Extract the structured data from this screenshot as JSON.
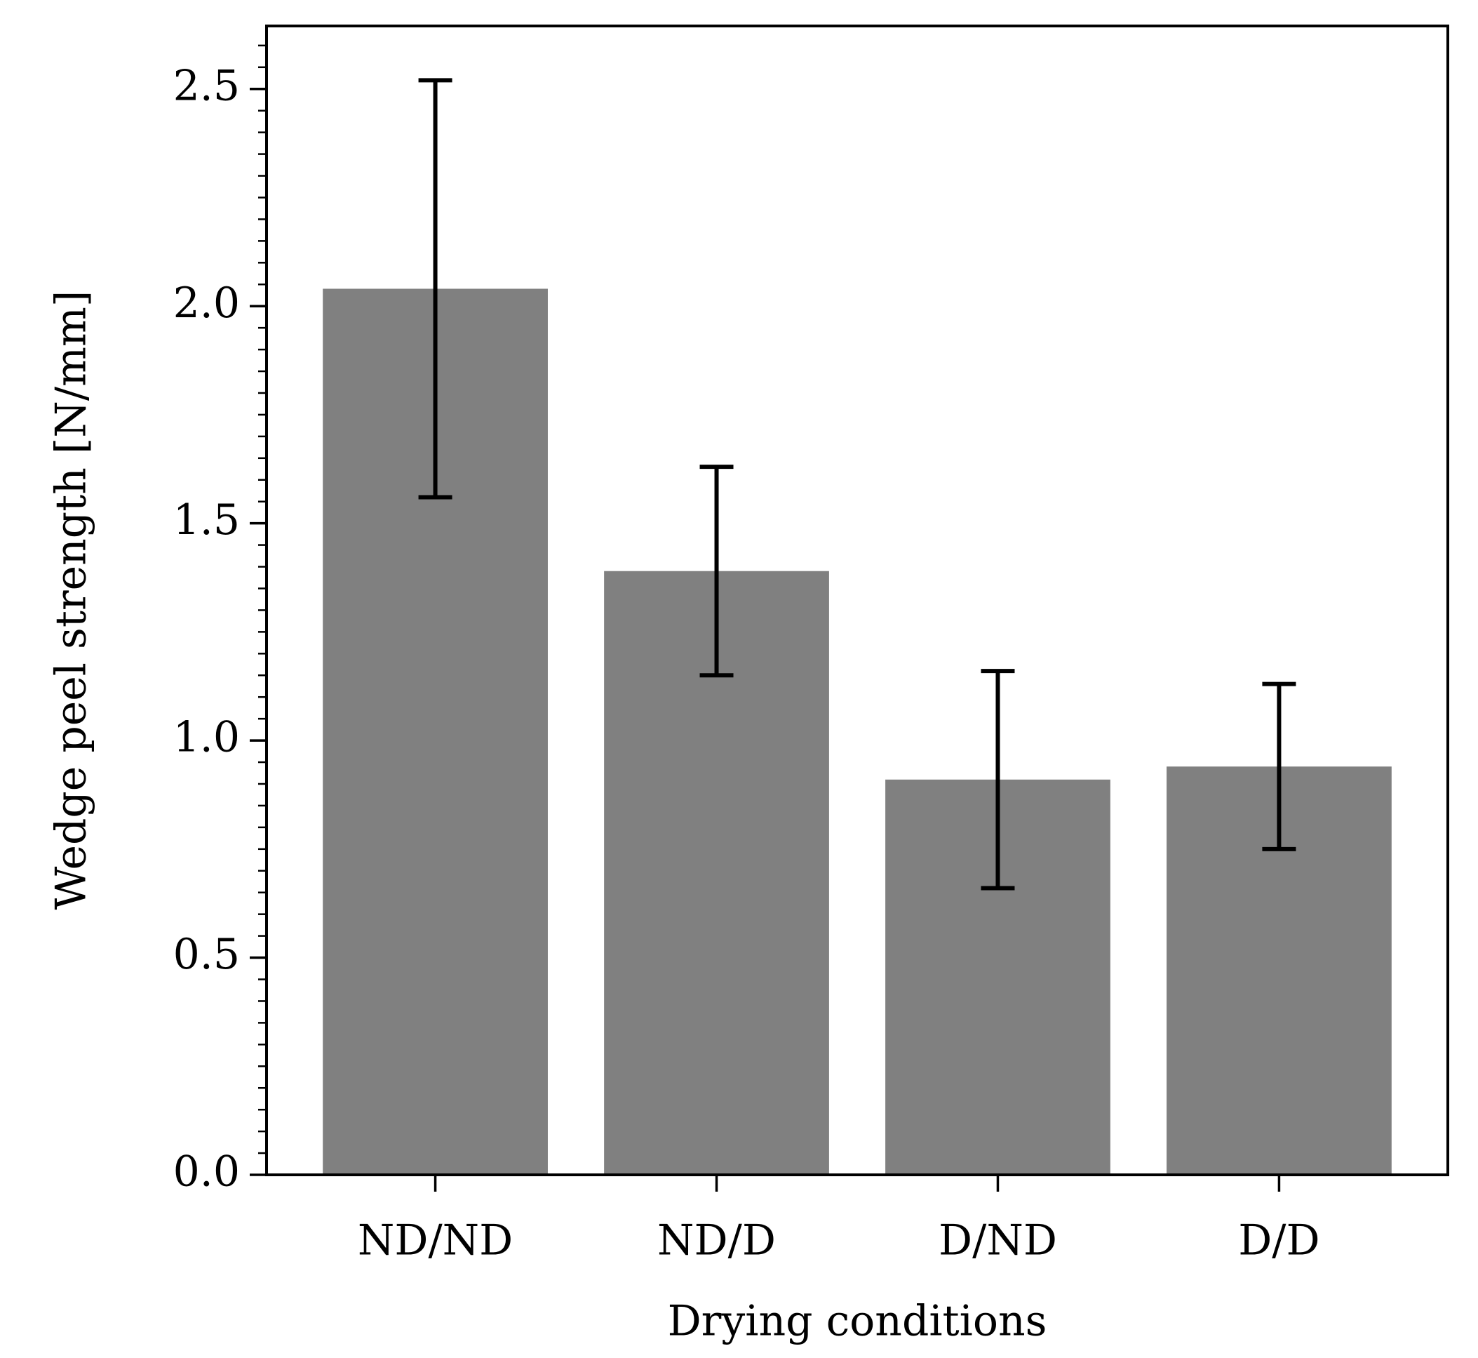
{
  "chart_data": {
    "type": "bar",
    "xlabel": "Drying conditions",
    "ylabel": "Wedge peel strength [N/mm]",
    "categories": [
      "ND/ND",
      "ND/D",
      "D/ND",
      "D/D"
    ],
    "values": [
      2.04,
      1.39,
      0.91,
      0.94
    ],
    "errors": [
      0.48,
      0.24,
      0.25,
      0.19
    ],
    "color": "#808080",
    "error_color": "#000000",
    "ylim": [
      0,
      2.645
    ],
    "yticks": [
      {
        "value": 0,
        "label": "0.0"
      },
      0.5,
      {
        "value": 1,
        "label": "1.0"
      },
      1.5,
      {
        "value": 2,
        "label": "2.0"
      },
      2.5
    ],
    "yminorticks": [
      0.05,
      0.1,
      0.15,
      0.2,
      0.25,
      0.3,
      0.35,
      0.4,
      0.45,
      0.55,
      0.6,
      0.65,
      0.7,
      0.75,
      0.8,
      0.85,
      0.9,
      0.95,
      1.05,
      1.1,
      1.15,
      1.2,
      1.25,
      1.3,
      1.35,
      1.4,
      1.45,
      1.55,
      1.6,
      1.65,
      1.7,
      1.75,
      1.8,
      1.85,
      1.9,
      1.95,
      2.05,
      2.1,
      2.15,
      2.2,
      2.25,
      2.3,
      2.35,
      2.4,
      2.45,
      2.55,
      2.6
    ],
    "grid": false
  }
}
